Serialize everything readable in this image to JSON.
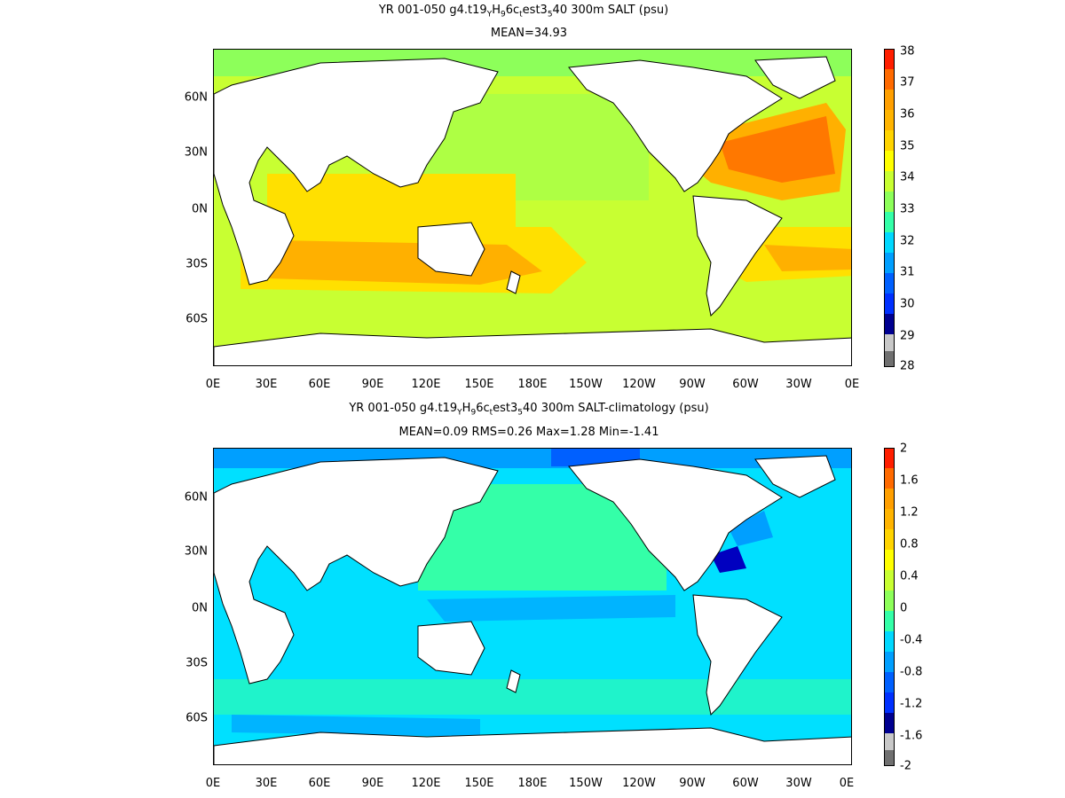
{
  "panels": [
    {
      "title_parts": [
        "YR 001-050 g4.t19",
        "Y",
        "H",
        "9",
        "6c",
        "t",
        "est3",
        "5",
        "40 300m SALT (psu)"
      ],
      "stats": "MEAN=34.93",
      "colorbar": {
        "labels": [
          "38",
          "37",
          "36",
          "35",
          "34",
          "33",
          "32",
          "31",
          "30",
          "29",
          "28"
        ],
        "colors": [
          "#ff1e00",
          "#ff6a00",
          "#ff9f00",
          "#ffd400",
          "#ffff00",
          "#c8ff32",
          "#8dff5a",
          "#34ffa8",
          "#00d8ff",
          "#009fff",
          "#0060ff",
          "#0030ff",
          "#0000d0",
          "#000090",
          "#c8c8c8",
          "#707070"
        ]
      },
      "field_colors": {
        "ocean": "#c8ff32",
        "subtropic": "#ffe000",
        "gyre": "#ffb000",
        "atlantic": "#ff7800",
        "arctic": "#8dff5a"
      }
    },
    {
      "title_parts": [
        "YR 001-050 g4.t19",
        "Y",
        "H",
        "9",
        "6c",
        "t",
        "est3",
        "5",
        "40 300m SALT-climatology (psu)"
      ],
      "stats": "MEAN=0.09   RMS=0.26   Max=1.28   Min=-1.41",
      "colorbar": {
        "labels": [
          "2",
          "1.6",
          "1.2",
          "0.8",
          "0.4",
          "0",
          "-0.4",
          "-0.8",
          "-1.2",
          "-1.6",
          "-2"
        ],
        "colors": [
          "#ff1e00",
          "#ff6a00",
          "#ff9f00",
          "#ffd400",
          "#ffff00",
          "#c8ff32",
          "#8dff5a",
          "#34ffa8",
          "#00d8ff",
          "#009fff",
          "#0060ff",
          "#0030ff",
          "#0000d0",
          "#000090",
          "#c8c8c8",
          "#707070"
        ]
      },
      "field_colors": {
        "ocean": "#00e0ff",
        "mid": "#34ffa8",
        "low": "#00b4ff",
        "arctic": "#0060ff",
        "gulf": "#0000c0"
      }
    }
  ],
  "y_labels": [
    "60N",
    "30N",
    "0N",
    "30S",
    "60S"
  ],
  "x_labels": [
    "0E",
    "30E",
    "60E",
    "90E",
    "120E",
    "150E",
    "180E",
    "150W",
    "120W",
    "90W",
    "60W",
    "30W",
    "0E"
  ]
}
